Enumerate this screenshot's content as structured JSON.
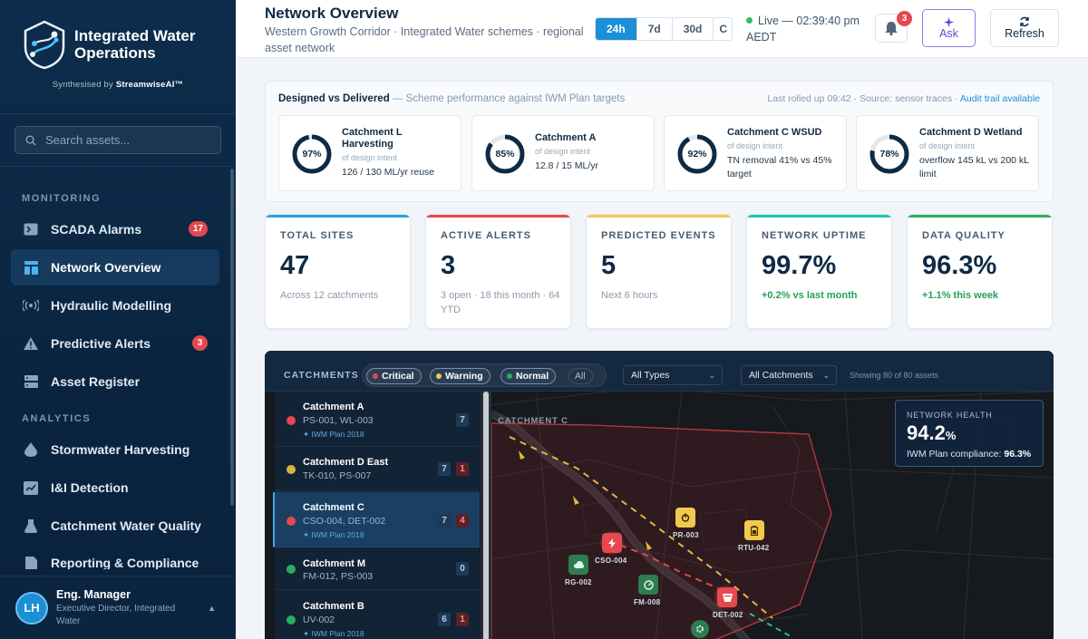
{
  "brand": {
    "name_line1": "Integrated Water",
    "name_line2": "Operations",
    "synth_prefix": "Synthesised by ",
    "synth_brand": "StreamwiseAI™"
  },
  "search": {
    "placeholder": "Search assets..."
  },
  "sidebar": {
    "sections": [
      "MONITORING",
      "ANALYTICS"
    ],
    "items": [
      {
        "label": "SCADA Alarms",
        "icon": "terminal-icon",
        "badge": "17"
      },
      {
        "label": "Network Overview",
        "icon": "grid-icon",
        "active": true
      },
      {
        "label": "Hydraulic Modelling",
        "icon": "broadcast-icon"
      },
      {
        "label": "Predictive Alerts",
        "icon": "warning-icon",
        "badge": "3"
      },
      {
        "label": "Asset Register",
        "icon": "server-icon"
      },
      {
        "label": "Stormwater Harvesting",
        "icon": "droplet-icon"
      },
      {
        "label": "I&I Detection",
        "icon": "chart-check-icon"
      },
      {
        "label": "Catchment Water Quality",
        "icon": "flask-icon"
      },
      {
        "label": "Reporting & Compliance",
        "icon": "document-icon"
      }
    ]
  },
  "user": {
    "initials": "LH",
    "name": "Eng. Manager",
    "role": "Executive Director, Integrated Water"
  },
  "header": {
    "title": "Network Overview",
    "subtitle": "Western Growth Corridor · Integrated Water schemes · regional asset network",
    "ranges": [
      "24h",
      "7d",
      "30d",
      "C"
    ],
    "active_range": "24h",
    "live_text": "Live — 02:39:40 pm AEDT",
    "notif_count": "3",
    "ask_label": "Ask",
    "refresh_label": "Refresh"
  },
  "dvd": {
    "title": "Designed vs Delivered",
    "subtitle": "— Scheme performance against IWM Plan targets",
    "meta": "Last rolled up 09:42 · Source: sensor traces · ",
    "audit_link": "Audit trail available",
    "cards": [
      {
        "name": "Catchment L Harvesting",
        "pct": "97%",
        "value": 0.97,
        "sub": "of design intent",
        "detail": "126 / 130 ML/yr reuse"
      },
      {
        "name": "Catchment A",
        "pct": "85%",
        "value": 0.85,
        "sub": "of design intent",
        "detail": "12.8 / 15 ML/yr"
      },
      {
        "name": "Catchment C WSUD",
        "pct": "92%",
        "value": 0.92,
        "sub": "of design intent",
        "detail": "TN removal 41% vs 45% target"
      },
      {
        "name": "Catchment D Wetland",
        "pct": "78%",
        "value": 0.78,
        "sub": "of design intent",
        "detail": "overflow 145 kL vs 200 kL limit"
      }
    ]
  },
  "kpis": [
    {
      "label": "TOTAL SITES",
      "value": "47",
      "note": "Across 12 catchments",
      "accent": "#2ba3df",
      "good": false
    },
    {
      "label": "ACTIVE ALERTS",
      "value": "3",
      "note": "3 open · 18 this month · 64 YTD",
      "accent": "#e5484d",
      "good": false
    },
    {
      "label": "PREDICTED EVENTS",
      "value": "5",
      "note": "Next 6 hours",
      "accent": "#f2c94c",
      "good": false
    },
    {
      "label": "NETWORK UPTIME",
      "value": "99.7%",
      "note": "+0.2% vs last month",
      "accent": "#1fc6b0",
      "good": true
    },
    {
      "label": "DATA QUALITY",
      "value": "96.3%",
      "note": "+1.1% this week",
      "accent": "#27ae60",
      "good": true
    }
  ],
  "map": {
    "title": "CATCHMENTS",
    "filters": [
      {
        "label": "Critical",
        "color": "#e5484d"
      },
      {
        "label": "Warning",
        "color": "#f2c94c"
      },
      {
        "label": "Normal",
        "color": "#27ae60"
      },
      {
        "label": "All"
      }
    ],
    "type_select": "All Types",
    "catchment_select": "All Catchments",
    "count_text": "Showing 80 of 80 assets",
    "region_label": "CATCHMENT C",
    "health": {
      "label": "NETWORK HEALTH",
      "value": "94.2",
      "unit": "%",
      "compliance_label": "IWM Plan compliance: ",
      "compliance_value": "96.3%"
    },
    "catchments": [
      {
        "name": "Catchment A",
        "assets": "PS-001, WL-003",
        "plan": "✦ IWM Plan 2018",
        "status": "#e5484d",
        "count": "7",
        "alerts": ""
      },
      {
        "name": "Catchment D East",
        "assets": "TK-010, PS-007",
        "plan": "",
        "status": "#d9b53a",
        "count": "7",
        "alerts": "1"
      },
      {
        "name": "Catchment C",
        "assets": "CSO-004, DET-002",
        "plan": "✦ IWM Plan 2018",
        "status": "#e5484d",
        "count": "7",
        "alerts": "4",
        "selected": true
      },
      {
        "name": "Catchment M",
        "assets": "FM-012, PS-003",
        "plan": "",
        "status": "#27ae60",
        "count": "0",
        "alerts": ""
      },
      {
        "name": "Catchment B",
        "assets": "UV-002",
        "plan": "✦ IWM Plan 2018",
        "status": "#27ae60",
        "count": "6",
        "alerts": "1"
      }
    ],
    "markers": [
      {
        "label": "PR-003",
        "kind": "warning",
        "icon": "power-icon"
      },
      {
        "label": "RTU-042",
        "kind": "warning",
        "icon": "battery-icon"
      },
      {
        "label": "CSO-004",
        "kind": "critical",
        "icon": "bolt-icon"
      },
      {
        "label": "RG-002",
        "kind": "normal",
        "icon": "cloud-icon"
      },
      {
        "label": "FM-008",
        "kind": "normal",
        "icon": "gauge-icon"
      },
      {
        "label": "DET-002",
        "kind": "critical",
        "icon": "basin-icon"
      }
    ]
  }
}
